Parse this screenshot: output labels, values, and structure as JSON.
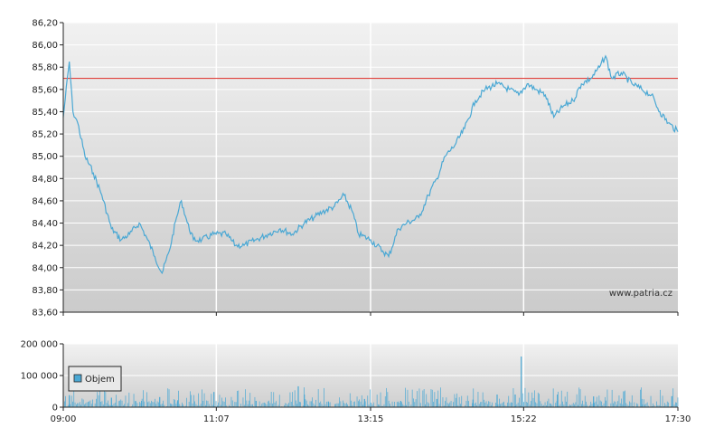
{
  "chart_data": [
    {
      "type": "line",
      "title": "",
      "xlabel": "",
      "ylabel": "",
      "x_ticks": [
        "09:00",
        "11:07",
        "13:15",
        "15:22",
        "17:30"
      ],
      "y_ticks": [
        "83,60",
        "83,80",
        "84,00",
        "84,20",
        "84,40",
        "84,60",
        "84,80",
        "85,00",
        "85,20",
        "85,40",
        "85,60",
        "85,80",
        "86,00",
        "86,20"
      ],
      "ylim": [
        83.6,
        86.2
      ],
      "xlim": [
        "09:00",
        "17:30"
      ],
      "reference_line": {
        "value": 85.7,
        "color": "#e0413b"
      },
      "series": [
        {
          "color": "#4aa8d4",
          "points": [
            [
              "09:00",
              85.35
            ],
            [
              "09:05",
              85.85
            ],
            [
              "09:08",
              85.4
            ],
            [
              "09:12",
              85.3
            ],
            [
              "09:18",
              85.0
            ],
            [
              "09:25",
              84.85
            ],
            [
              "09:32",
              84.65
            ],
            [
              "09:40",
              84.35
            ],
            [
              "09:48",
              84.25
            ],
            [
              "09:55",
              84.3
            ],
            [
              "10:03",
              84.4
            ],
            [
              "10:10",
              84.25
            ],
            [
              "10:16",
              84.1
            ],
            [
              "10:22",
              83.95
            ],
            [
              "10:28",
              84.15
            ],
            [
              "10:34",
              84.45
            ],
            [
              "10:38",
              84.6
            ],
            [
              "10:43",
              84.4
            ],
            [
              "10:48",
              84.25
            ],
            [
              "10:55",
              84.25
            ],
            [
              "11:05",
              84.3
            ],
            [
              "11:15",
              84.3
            ],
            [
              "11:23",
              84.2
            ],
            [
              "11:30",
              84.2
            ],
            [
              "11:40",
              84.25
            ],
            [
              "11:50",
              84.3
            ],
            [
              "12:00",
              84.35
            ],
            [
              "12:10",
              84.3
            ],
            [
              "12:20",
              84.4
            ],
            [
              "12:28",
              84.45
            ],
            [
              "12:35",
              84.5
            ],
            [
              "12:45",
              84.55
            ],
            [
              "12:53",
              84.65
            ],
            [
              "13:00",
              84.5
            ],
            [
              "13:05",
              84.3
            ],
            [
              "13:15",
              84.25
            ],
            [
              "13:25",
              84.15
            ],
            [
              "13:30",
              84.1
            ],
            [
              "13:38",
              84.35
            ],
            [
              "13:45",
              84.4
            ],
            [
              "13:55",
              84.45
            ],
            [
              "14:03",
              84.65
            ],
            [
              "14:10",
              84.8
            ],
            [
              "14:17",
              85.0
            ],
            [
              "14:25",
              85.1
            ],
            [
              "14:33",
              85.25
            ],
            [
              "14:42",
              85.5
            ],
            [
              "14:50",
              85.6
            ],
            [
              "15:00",
              85.65
            ],
            [
              "15:10",
              85.6
            ],
            [
              "15:18",
              85.55
            ],
            [
              "15:25",
              85.65
            ],
            [
              "15:32",
              85.6
            ],
            [
              "15:40",
              85.55
            ],
            [
              "15:47",
              85.35
            ],
            [
              "15:55",
              85.45
            ],
            [
              "16:03",
              85.5
            ],
            [
              "16:10",
              85.65
            ],
            [
              "16:18",
              85.7
            ],
            [
              "16:25",
              85.8
            ],
            [
              "16:30",
              85.9
            ],
            [
              "16:35",
              85.7
            ],
            [
              "16:43",
              85.75
            ],
            [
              "16:52",
              85.65
            ],
            [
              "17:00",
              85.6
            ],
            [
              "17:08",
              85.55
            ],
            [
              "17:15",
              85.4
            ],
            [
              "17:22",
              85.3
            ],
            [
              "17:30",
              85.22
            ]
          ]
        }
      ]
    },
    {
      "type": "bar",
      "title": "",
      "xlabel": "",
      "ylabel": "",
      "y_ticks": [
        "0",
        "100 000",
        "200 000"
      ],
      "ylim": [
        0,
        200000
      ],
      "legend": {
        "label": "Objem",
        "position": "left"
      },
      "series": [
        {
          "name": "Objem",
          "color": "#4aa8d4",
          "points": [
            [
              "09:05",
              38000
            ],
            [
              "09:40",
              30000
            ],
            [
              "10:05",
              20000
            ],
            [
              "10:20",
              32000
            ],
            [
              "10:35",
              22000
            ],
            [
              "11:05",
              48000
            ],
            [
              "11:40",
              20000
            ],
            [
              "12:15",
              66000
            ],
            [
              "12:20",
              40000
            ],
            [
              "12:40",
              18000
            ],
            [
              "13:10",
              26000
            ],
            [
              "13:40",
              20000
            ],
            [
              "14:10",
              26000
            ],
            [
              "14:40",
              24000
            ],
            [
              "15:00",
              40000
            ],
            [
              "15:15",
              40000
            ],
            [
              "15:20",
              160000
            ],
            [
              "15:50",
              40000
            ],
            [
              "16:20",
              34000
            ],
            [
              "16:45",
              50000
            ],
            [
              "17:00",
              26000
            ],
            [
              "17:25",
              35000
            ]
          ]
        }
      ]
    }
  ],
  "watermark": "www.patria.cz"
}
